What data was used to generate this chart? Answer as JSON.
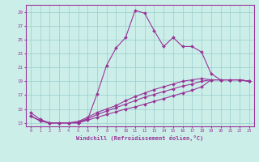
{
  "xlabel": "Windchill (Refroidissement éolien,°C)",
  "x_ticks": [
    0,
    1,
    2,
    3,
    4,
    5,
    6,
    7,
    8,
    9,
    10,
    11,
    12,
    13,
    14,
    15,
    16,
    17,
    18,
    19,
    20,
    21,
    22,
    23
  ],
  "ylim": [
    12.5,
    30
  ],
  "yticks": [
    13,
    15,
    17,
    19,
    21,
    23,
    25,
    27,
    29
  ],
  "background_color": "#cceee8",
  "grid_color": "#99cccc",
  "line_color": "#993399",
  "lines": [
    [
      14.5,
      13.5,
      13.0,
      13.0,
      13.0,
      13.0,
      13.5,
      17.2,
      21.3,
      23.8,
      25.3,
      29.2,
      28.8,
      26.3,
      24.0,
      25.3,
      24.0,
      24.0,
      23.2,
      20.1,
      19.2,
      19.2,
      19.2,
      19.0
    ],
    [
      14.0,
      13.3,
      13.0,
      13.0,
      13.0,
      13.2,
      13.8,
      14.5,
      15.0,
      15.5,
      16.2,
      16.8,
      17.3,
      17.8,
      18.2,
      18.6,
      19.0,
      19.2,
      19.4,
      19.2,
      19.2,
      19.2,
      19.2,
      19.0
    ],
    [
      14.0,
      13.3,
      13.0,
      13.0,
      13.0,
      13.1,
      13.6,
      14.2,
      14.7,
      15.2,
      15.7,
      16.2,
      16.7,
      17.1,
      17.5,
      17.9,
      18.3,
      18.6,
      19.0,
      19.2,
      19.2,
      19.2,
      19.2,
      19.0
    ],
    [
      14.0,
      13.3,
      13.0,
      13.0,
      13.0,
      13.0,
      13.4,
      13.8,
      14.2,
      14.6,
      15.0,
      15.3,
      15.7,
      16.1,
      16.5,
      16.9,
      17.3,
      17.7,
      18.2,
      19.2,
      19.2,
      19.2,
      19.2,
      19.0
    ]
  ],
  "all_markers": true
}
